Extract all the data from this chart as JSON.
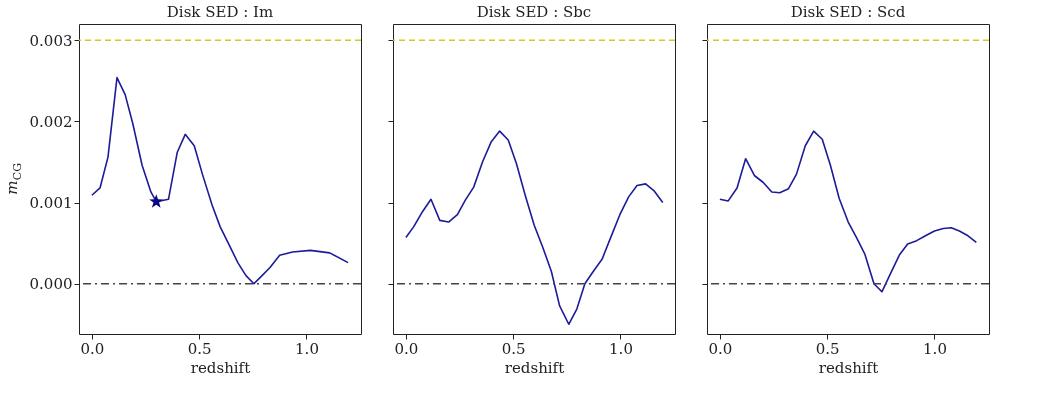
{
  "chart_data": [
    {
      "type": "line",
      "title": "Disk SED : Im",
      "xlabel": "redshift",
      "ylabel": "m$_{CG}$",
      "grid": false,
      "line_style": "solid",
      "xlim": [
        -0.06,
        1.254
      ],
      "ylim": [
        -0.00062,
        0.0032
      ],
      "xticks": [
        {
          "value": 0,
          "label": "0.0"
        },
        {
          "value": 0.5,
          "label": "0.5"
        },
        {
          "value": 1,
          "label": "1.0"
        }
      ],
      "yticks": [
        {
          "value": 0,
          "label": "0.000"
        },
        {
          "value": 0.001,
          "label": "0.001"
        },
        {
          "value": 0.002,
          "label": "0.002"
        },
        {
          "value": 0.003,
          "label": "0.003"
        }
      ],
      "ref_lines": [
        {
          "axis": "y",
          "value": 0.003,
          "color": "#cccc22",
          "line_style": "dashed"
        },
        {
          "axis": "y",
          "value": 0,
          "color": "#444444",
          "line_style": "dashdot"
        }
      ],
      "series": [
        {
          "color": "#1c1c99",
          "marker": "none",
          "x": [
            0,
            0.038,
            0.075,
            0.117,
            0.155,
            0.19,
            0.234,
            0.275,
            0.3,
            0.357,
            0.398,
            0.435,
            0.477,
            0.515,
            0.56,
            0.598,
            0.643,
            0.68,
            0.718,
            0.755,
            0.793,
            0.83,
            0.875,
            0.935,
            1.018,
            1.108,
            1.194
          ],
          "values": [
            0.00109,
            0.00118,
            0.00156,
            0.00254,
            0.00233,
            0.00198,
            0.00146,
            0.00113,
            0.00101,
            0.00104,
            0.00162,
            0.00184,
            0.0017,
            0.00135,
            0.00097,
            0.0007,
            0.00046,
            0.00026,
            0.0001,
            0.0,
            0.0001,
            0.0002,
            0.00035,
            0.00039,
            0.00041,
            0.00038,
            0.00026
          ]
        },
        {
          "type": "scatter",
          "color": "#0a0a80",
          "marker": "star",
          "x": [
            0.3
          ],
          "values": [
            0.00101
          ]
        }
      ]
    },
    {
      "type": "line",
      "title": "Disk SED : Sbc",
      "xlabel": "redshift",
      "grid": false,
      "line_style": "solid",
      "tick_labels": "x",
      "xlim": [
        -0.06,
        1.254
      ],
      "ylim": [
        -0.00062,
        0.0032
      ],
      "xticks": [
        {
          "value": 0,
          "label": "0.0"
        },
        {
          "value": 0.5,
          "label": "0.5"
        },
        {
          "value": 1,
          "label": "1.0"
        }
      ],
      "yticks": [
        {
          "value": 0,
          "label": null
        },
        {
          "value": 0.001,
          "label": null
        },
        {
          "value": 0.002,
          "label": null
        },
        {
          "value": 0.003,
          "label": null
        }
      ],
      "ref_lines": [
        {
          "axis": "y",
          "value": 0.003,
          "color": "#cccc22",
          "line_style": "dashed"
        },
        {
          "axis": "y",
          "value": 0,
          "color": "#444444",
          "line_style": "dashdot"
        }
      ],
      "series": [
        {
          "color": "#1c1c99",
          "marker": "none",
          "x": [
            0,
            0.036,
            0.078,
            0.117,
            0.158,
            0.199,
            0.24,
            0.277,
            0.316,
            0.357,
            0.398,
            0.437,
            0.477,
            0.515,
            0.556,
            0.598,
            0.639,
            0.678,
            0.716,
            0.759,
            0.797,
            0.834,
            0.873,
            0.914,
            0.956,
            0.997,
            1.038,
            1.077,
            1.117,
            1.158,
            1.197
          ],
          "values": [
            0.00057,
            0.0007,
            0.00089,
            0.00104,
            0.00078,
            0.00076,
            0.00085,
            0.00103,
            0.00119,
            0.0015,
            0.00175,
            0.00188,
            0.00177,
            0.00148,
            0.00109,
            0.00072,
            0.00044,
            0.00015,
            -0.00027,
            -0.0005,
            -0.00031,
            0.0,
            0.00015,
            0.0003,
            0.00058,
            0.00085,
            0.00107,
            0.00121,
            0.00123,
            0.00114,
            0.001
          ]
        }
      ]
    },
    {
      "type": "line",
      "title": "Disk SED : Scd",
      "xlabel": "redshift",
      "grid": false,
      "line_style": "solid",
      "tick_labels": "x",
      "xlim": [
        -0.06,
        1.254
      ],
      "ylim": [
        -0.00062,
        0.0032
      ],
      "xticks": [
        {
          "value": 0,
          "label": "0.0"
        },
        {
          "value": 0.5,
          "label": "0.5"
        },
        {
          "value": 1,
          "label": "1.0"
        }
      ],
      "yticks": [
        {
          "value": 0,
          "label": null
        },
        {
          "value": 0.001,
          "label": null
        },
        {
          "value": 0.002,
          "label": null
        },
        {
          "value": 0.003,
          "label": null
        }
      ],
      "ref_lines": [
        {
          "axis": "y",
          "value": 0.003,
          "color": "#cccc22",
          "line_style": "dashed"
        },
        {
          "axis": "y",
          "value": 0,
          "color": "#444444",
          "line_style": "dashdot"
        }
      ],
      "series": [
        {
          "color": "#1c1c99",
          "marker": "none",
          "x": [
            0,
            0.039,
            0.08,
            0.12,
            0.162,
            0.201,
            0.242,
            0.279,
            0.32,
            0.357,
            0.398,
            0.437,
            0.477,
            0.515,
            0.556,
            0.598,
            0.638,
            0.676,
            0.718,
            0.755,
            0.796,
            0.838,
            0.875,
            0.917,
            0.958,
            1.0,
            1.041,
            1.078,
            1.116,
            1.156,
            1.195
          ],
          "values": [
            0.00104,
            0.00102,
            0.00118,
            0.00154,
            0.00133,
            0.00125,
            0.00113,
            0.00112,
            0.00117,
            0.00135,
            0.0017,
            0.00188,
            0.00178,
            0.00146,
            0.00105,
            0.00076,
            0.00056,
            0.00036,
            0.0,
            -0.0001,
            0.00013,
            0.00036,
            0.00049,
            0.00053,
            0.00059,
            0.00065,
            0.00068,
            0.00069,
            0.00065,
            0.00059,
            0.00051
          ]
        }
      ]
    }
  ]
}
